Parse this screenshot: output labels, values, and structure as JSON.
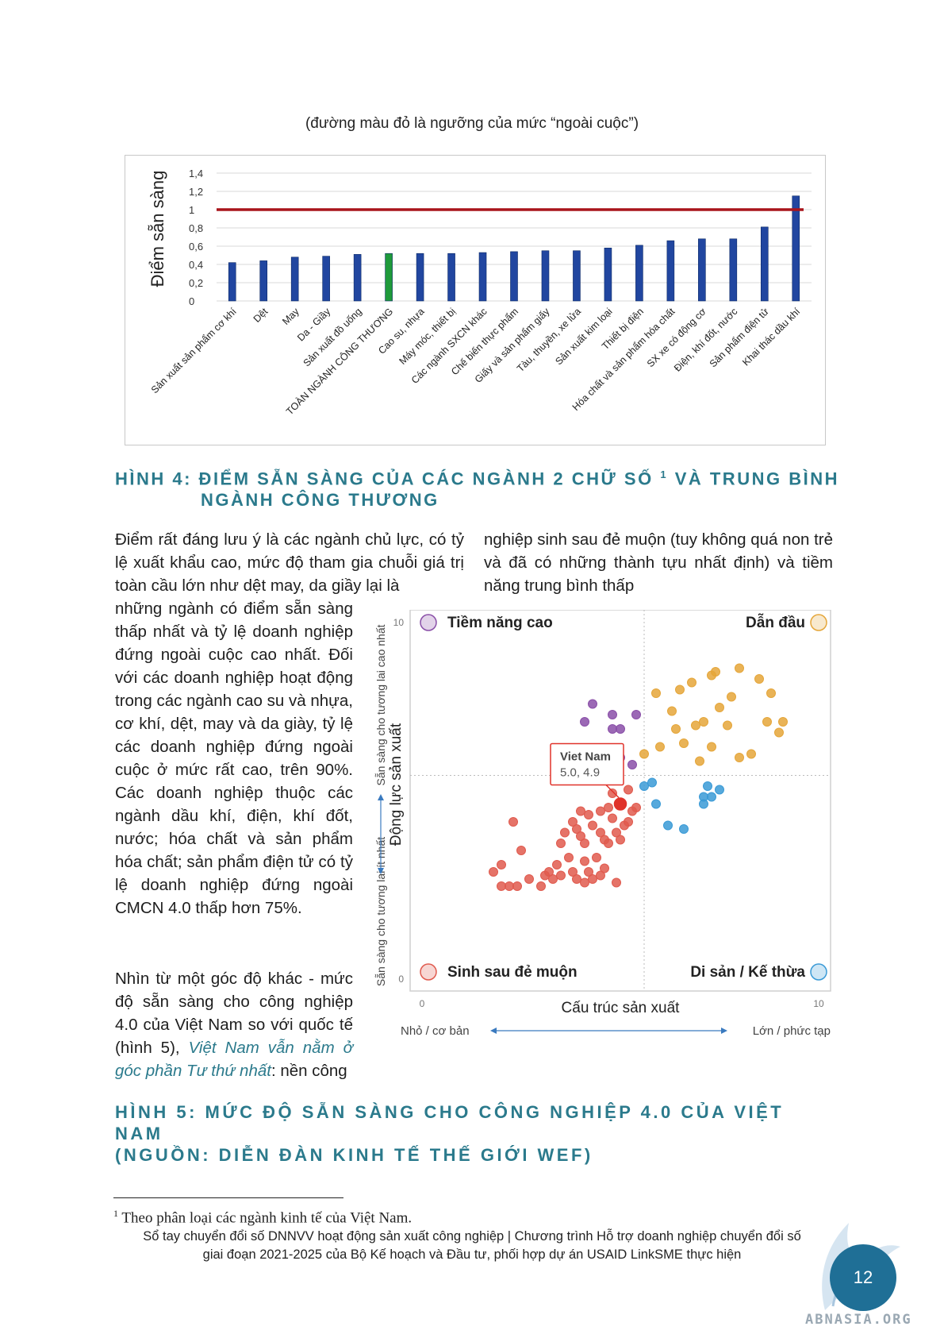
{
  "figure4": {
    "subtitle": "(đường màu đỏ là ngưỡng của mức “ngoài cuộc”)",
    "title_line1": "HÌNH 4: ĐIỂM SẴN SÀNG CỦA CÁC NGÀNH 2 CHỮ SỐ",
    "title_sup": "1",
    "title_line1_end": "VÀ TRUNG BÌNH",
    "title_line2": "NGÀNH CÔNG THƯƠNG"
  },
  "chart_data": [
    {
      "type": "bar",
      "ylabel": "Điểm sẵn sàng",
      "ylim": [
        0,
        1.4
      ],
      "yticks": [
        "0",
        "0,2",
        "0,4",
        "0,6",
        "0,8",
        "1",
        "1,2",
        "1,4"
      ],
      "threshold": 1.0,
      "threshold_color": "#a8141b",
      "bar_color": "#2146a0",
      "highlight_color": "#1f9a3b",
      "highlight_index": 5,
      "categories": [
        "Sản xuất sản phẩm cơ khí",
        "Dệt",
        "May",
        "Da - Giầy",
        "Sản xuất đồ uống",
        "TOÀN NGÀNH CÔNG THƯƠNG",
        "Cao su, nhựa",
        "Máy móc, thiết bị",
        "Các ngành SXCN khác",
        "Chế biến thực phẩm",
        "Giấy và sản phẩm giấy",
        "Tàu, thuyền, xe lửa",
        "Sản xuất kim loại",
        "Thiết bị điện",
        "Hóa chất và sản phẩm hóa chất",
        "SX xe có động cơ",
        "Điện, khí đốt, nước",
        "Sản phẩm điện tử",
        "Khai thác dầu khí"
      ],
      "values": [
        0.42,
        0.44,
        0.48,
        0.49,
        0.51,
        0.52,
        0.52,
        0.52,
        0.53,
        0.54,
        0.55,
        0.55,
        0.58,
        0.61,
        0.66,
        0.68,
        0.68,
        0.81,
        1.15
      ]
    },
    {
      "type": "scatter",
      "xlabel": "Cấu trúc sản xuất",
      "ylabel": "Động lực sản xuất",
      "xlim": [
        0,
        10
      ],
      "ylim": [
        0,
        10
      ],
      "x_tick_min": "0",
      "x_tick_max": "10",
      "y_tick_min": "0",
      "y_tick_max": "10",
      "x_low_label": "Nhỏ / cơ bản",
      "x_high_label": "Lớn / phức tạp",
      "y_low_label": "Sẵn sàng cho tương lai ít nhất",
      "y_high_label": "Sẵn sàng cho tương lai cao nhất",
      "quadrants": {
        "top_left": "Tiềm năng cao",
        "top_right": "Dẫn đầu",
        "bottom_left": "Sinh sau đẻ muộn",
        "bottom_right": "Di sản / Kế thừa"
      },
      "quadrant_colors": {
        "top_left": "#8a4fa8",
        "top_right": "#e5a63a",
        "bottom_left": "#e05a4e",
        "bottom_right": "#3a9ad6"
      },
      "divider": {
        "x": 5.6,
        "y": 5.7
      },
      "highlight": {
        "name": "Viet Nam",
        "label": "5.0, 4.9",
        "x": 5.0,
        "y": 4.9,
        "color": "#e0322a"
      },
      "series": [
        {
          "name": "Tiềm năng cao",
          "color": "#8a4fa8",
          "points": [
            [
              4.3,
              7.7
            ],
            [
              4.8,
              7.4
            ],
            [
              4.8,
              7.0
            ],
            [
              5.0,
              7.0
            ],
            [
              5.0,
              6.2
            ],
            [
              5.4,
              7.4
            ],
            [
              4.1,
              7.2
            ],
            [
              5.3,
              6.0
            ]
          ]
        },
        {
          "name": "Dẫn đầu",
          "color": "#e5a63a",
          "points": [
            [
              5.6,
              6.3
            ],
            [
              5.9,
              8.0
            ],
            [
              6.0,
              6.5
            ],
            [
              6.3,
              7.5
            ],
            [
              6.5,
              8.1
            ],
            [
              6.4,
              7.0
            ],
            [
              6.6,
              6.6
            ],
            [
              6.8,
              8.3
            ],
            [
              6.9,
              7.1
            ],
            [
              7.0,
              6.1
            ],
            [
              7.1,
              7.2
            ],
            [
              7.3,
              8.5
            ],
            [
              7.4,
              8.6
            ],
            [
              7.5,
              7.6
            ],
            [
              7.3,
              6.5
            ],
            [
              7.7,
              7.1
            ],
            [
              8.0,
              8.7
            ],
            [
              7.8,
              7.9
            ],
            [
              8.5,
              8.4
            ],
            [
              8.3,
              6.3
            ],
            [
              8.7,
              7.2
            ],
            [
              8.8,
              8.0
            ],
            [
              9.1,
              7.2
            ],
            [
              9.0,
              6.9
            ],
            [
              8.0,
              6.2
            ]
          ]
        },
        {
          "name": "Di sản / Kế thừa",
          "color": "#3a9ad6",
          "points": [
            [
              5.6,
              5.4
            ],
            [
              5.8,
              5.5
            ],
            [
              5.9,
              4.9
            ],
            [
              6.2,
              4.3
            ],
            [
              6.6,
              4.2
            ],
            [
              7.1,
              4.9
            ],
            [
              7.3,
              5.1
            ],
            [
              7.5,
              5.3
            ],
            [
              7.1,
              5.1
            ],
            [
              7.2,
              5.4
            ]
          ]
        },
        {
          "name": "Sinh sau đẻ muộn",
          "color": "#e05a4e",
          "points": [
            [
              1.8,
              3.0
            ],
            [
              2.0,
              3.2
            ],
            [
              2.0,
              2.6
            ],
            [
              2.2,
              2.6
            ],
            [
              2.4,
              2.6
            ],
            [
              2.3,
              4.4
            ],
            [
              2.5,
              3.6
            ],
            [
              2.7,
              2.8
            ],
            [
              3.0,
              2.6
            ],
            [
              3.1,
              2.9
            ],
            [
              3.3,
              2.8
            ],
            [
              3.5,
              2.9
            ],
            [
              3.6,
              4.1
            ],
            [
              3.7,
              3.4
            ],
            [
              3.8,
              3.0
            ],
            [
              3.9,
              2.8
            ],
            [
              4.1,
              2.7
            ],
            [
              4.2,
              3.0
            ],
            [
              4.3,
              2.8
            ],
            [
              4.5,
              2.9
            ],
            [
              4.6,
              3.1
            ],
            [
              4.1,
              3.8
            ],
            [
              4.2,
              4.6
            ],
            [
              4.3,
              4.3
            ],
            [
              4.5,
              4.1
            ],
            [
              4.5,
              4.7
            ],
            [
              4.7,
              4.8
            ],
            [
              4.8,
              4.5
            ],
            [
              4.9,
              4.1
            ],
            [
              5.1,
              4.3
            ],
            [
              5.2,
              4.4
            ],
            [
              5.3,
              4.7
            ],
            [
              4.0,
              4.7
            ],
            [
              3.9,
              4.2
            ],
            [
              4.6,
              3.9
            ],
            [
              4.9,
              2.7
            ],
            [
              4.7,
              3.8
            ],
            [
              4.4,
              3.4
            ],
            [
              4.1,
              3.3
            ],
            [
              3.8,
              4.4
            ],
            [
              3.5,
              3.8
            ],
            [
              3.4,
              3.2
            ],
            [
              5.0,
              3.9
            ],
            [
              5.4,
              4.8
            ],
            [
              5.2,
              5.3
            ],
            [
              4.8,
              5.2
            ],
            [
              3.2,
              3.0
            ],
            [
              4.0,
              4.0
            ]
          ]
        }
      ]
    }
  ],
  "body": {
    "col_left_wide": "Điểm rất đáng lưu ý là các ngành chủ lực, có tỷ lệ xuất khẩu cao, mức độ tham gia chuỗi giá trị toàn cầu lớn như dệt may, da giầy lại là",
    "col_left_narrow": "những ngành có điểm sẵn sàng thấp nhất và tỷ lệ doanh nghiệp đứng ngoài cuộc cao nhất. Đối với các doanh nghiệp hoạt động trong các ngành cao su và nhựa, cơ khí, dệt, may và da giày, tỷ lệ các doanh nghiệp đứng ngoài cuộc ở mức rất cao, trên 90%. Các doanh nghiệp thuộc các ngành dầu khí, điện, khí đốt, nước; hóa chất và sản phẩm hóa chất; sản phẩm điện tử có tỷ lệ doanh nghiệp đứng ngoài CMCN 4.0 thấp hơn 75%.",
    "para2_start": "Nhìn từ một góc độ khác - mức độ sẵn sàng cho công nghiệp 4.0 của Việt Nam so với quốc tế (hình 5),",
    "para2_highlight": "Việt Nam vẫn nằm ở góc phần Tư thứ nhất",
    "para2_end": ": nền công",
    "col_right_top": "nghiệp sinh sau đẻ muộn (tuy không quá non trẻ và đã có những thành tựu nhất định) và tiềm năng trung bình thấp"
  },
  "figure5": {
    "title_line1": "HÌNH 5: MỨC ĐỘ SẴN SÀNG CHO CÔNG NGHIỆP 4.0 CỦA VIỆT NAM",
    "title_line2": "(NGUỒN: DIỄN ĐÀN KINH TẾ THẾ GIỚI WEF)"
  },
  "footnote": {
    "mark": "1",
    "text": "Theo phân loại các ngành kinh tế của Việt Nam."
  },
  "footer": {
    "line1": "Sổ tay chuyển đổi số DNNVV hoạt động sản xuất công nghiệp | Chương trình Hỗ trợ doanh nghiệp chuyển đổi số",
    "line2": "giai đoạn 2021-2025 của Bộ Kế hoạch và Đầu tư, phối hợp dự án USAID LinkSME thực hiện",
    "page_number": "12",
    "watermark": "ABNASIA.ORG"
  }
}
